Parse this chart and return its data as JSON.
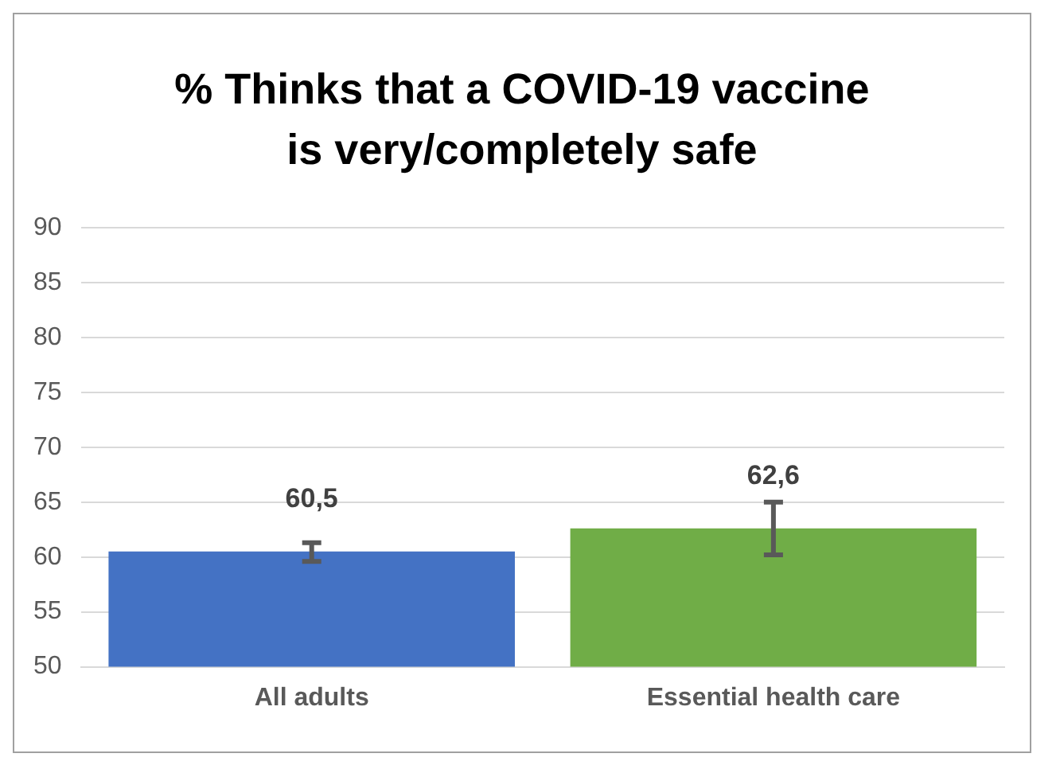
{
  "chart_data": {
    "type": "bar",
    "title": "% Thinks that a COVID-19 vaccine is very/completely safe",
    "categories": [
      "All adults",
      "Essential health care"
    ],
    "values": [
      60.5,
      62.6
    ],
    "colors": [
      "#4472c4",
      "#70ad47"
    ],
    "errors": [
      [
        59.6,
        61.3
      ],
      [
        60.2,
        65.0
      ]
    ],
    "value_labels": [
      "60,5",
      "62,6"
    ],
    "ylim": [
      50,
      90
    ],
    "yticks": [
      50,
      55,
      60,
      65,
      70,
      75,
      80,
      85,
      90
    ],
    "grid": "y",
    "legend": false
  }
}
